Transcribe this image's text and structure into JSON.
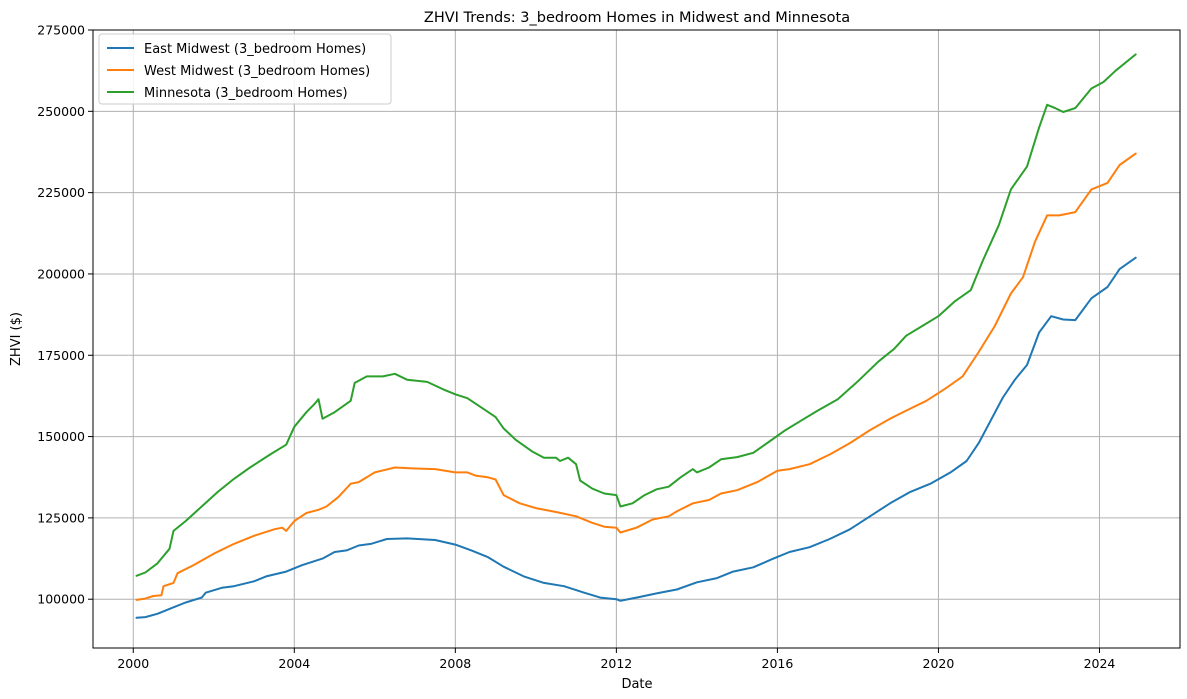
{
  "chart_data": {
    "type": "line",
    "title": "ZHVI Trends: 3_bedroom Homes in Midwest and Minnesota",
    "xlabel": "Date",
    "ylabel": "ZHVI ($)",
    "xlim": [
      1999.0,
      2026.0
    ],
    "ylim": [
      85000,
      275000
    ],
    "x_ticks": [
      2000,
      2004,
      2008,
      2012,
      2016,
      2020,
      2024
    ],
    "x_tick_labels": [
      "2000",
      "2004",
      "2008",
      "2012",
      "2016",
      "2020",
      "2024"
    ],
    "y_ticks": [
      100000,
      125000,
      150000,
      175000,
      200000,
      225000,
      250000,
      275000
    ],
    "y_tick_labels": [
      "100000",
      "125000",
      "150000",
      "175000",
      "200000",
      "225000",
      "250000",
      "275000"
    ],
    "grid": true,
    "legend_position": "top-left",
    "series": [
      {
        "name": "East Midwest (3_bedroom Homes)",
        "color": "#1f77b4",
        "points": [
          [
            2000.08,
            94300
          ],
          [
            2000.3,
            94500
          ],
          [
            2000.6,
            95500
          ],
          [
            2001.0,
            97500
          ],
          [
            2001.3,
            99000
          ],
          [
            2001.7,
            100500
          ],
          [
            2001.8,
            102000
          ],
          [
            2002.2,
            103500
          ],
          [
            2002.5,
            104000
          ],
          [
            2003.0,
            105500
          ],
          [
            2003.3,
            107000
          ],
          [
            2003.8,
            108500
          ],
          [
            2004.2,
            110500
          ],
          [
            2004.7,
            112500
          ],
          [
            2005.0,
            114500
          ],
          [
            2005.3,
            115000
          ],
          [
            2005.6,
            116500
          ],
          [
            2005.9,
            117000
          ],
          [
            2006.3,
            118500
          ],
          [
            2006.8,
            118700
          ],
          [
            2007.5,
            118200
          ],
          [
            2008.0,
            116800
          ],
          [
            2008.4,
            115000
          ],
          [
            2008.8,
            113000
          ],
          [
            2009.2,
            110000
          ],
          [
            2009.7,
            107000
          ],
          [
            2010.2,
            105000
          ],
          [
            2010.7,
            104000
          ],
          [
            2011.2,
            102000
          ],
          [
            2011.6,
            100500
          ],
          [
            2012.0,
            100000
          ],
          [
            2012.1,
            99500
          ],
          [
            2012.5,
            100500
          ],
          [
            2013.0,
            101800
          ],
          [
            2013.5,
            103000
          ],
          [
            2014.0,
            105200
          ],
          [
            2014.5,
            106500
          ],
          [
            2014.9,
            108500
          ],
          [
            2015.4,
            109800
          ],
          [
            2015.9,
            112500
          ],
          [
            2016.3,
            114500
          ],
          [
            2016.8,
            116000
          ],
          [
            2017.3,
            118500
          ],
          [
            2017.8,
            121500
          ],
          [
            2018.3,
            125500
          ],
          [
            2018.8,
            129500
          ],
          [
            2019.3,
            133000
          ],
          [
            2019.8,
            135500
          ],
          [
            2020.3,
            139000
          ],
          [
            2020.7,
            142500
          ],
          [
            2021.0,
            148000
          ],
          [
            2021.3,
            155000
          ],
          [
            2021.6,
            162000
          ],
          [
            2021.9,
            167500
          ],
          [
            2022.2,
            172000
          ],
          [
            2022.5,
            182000
          ],
          [
            2022.8,
            187000
          ],
          [
            2023.1,
            186000
          ],
          [
            2023.4,
            185800
          ],
          [
            2023.8,
            192500
          ],
          [
            2024.2,
            196000
          ],
          [
            2024.5,
            201500
          ],
          [
            2024.9,
            205000
          ]
        ]
      },
      {
        "name": "West Midwest (3_bedroom Homes)",
        "color": "#ff7f0e",
        "points": [
          [
            2000.08,
            99800
          ],
          [
            2000.3,
            100200
          ],
          [
            2000.5,
            101000
          ],
          [
            2000.7,
            101200
          ],
          [
            2000.75,
            104000
          ],
          [
            2001.0,
            105000
          ],
          [
            2001.1,
            108000
          ],
          [
            2001.5,
            110500
          ],
          [
            2002.0,
            114000
          ],
          [
            2002.5,
            117000
          ],
          [
            2003.0,
            119500
          ],
          [
            2003.5,
            121500
          ],
          [
            2003.7,
            122000
          ],
          [
            2003.8,
            121000
          ],
          [
            2004.0,
            124000
          ],
          [
            2004.3,
            126500
          ],
          [
            2004.6,
            127500
          ],
          [
            2004.8,
            128500
          ],
          [
            2005.1,
            131500
          ],
          [
            2005.4,
            135500
          ],
          [
            2005.6,
            136000
          ],
          [
            2006.0,
            139000
          ],
          [
            2006.5,
            140500
          ],
          [
            2007.0,
            140200
          ],
          [
            2007.5,
            140000
          ],
          [
            2008.0,
            139000
          ],
          [
            2008.3,
            139000
          ],
          [
            2008.5,
            138000
          ],
          [
            2008.8,
            137500
          ],
          [
            2009.0,
            136800
          ],
          [
            2009.2,
            132000
          ],
          [
            2009.6,
            129500
          ],
          [
            2010.0,
            128000
          ],
          [
            2010.5,
            126800
          ],
          [
            2011.0,
            125500
          ],
          [
            2011.4,
            123500
          ],
          [
            2011.7,
            122300
          ],
          [
            2012.0,
            122000
          ],
          [
            2012.1,
            120500
          ],
          [
            2012.5,
            122000
          ],
          [
            2012.9,
            124500
          ],
          [
            2013.3,
            125500
          ],
          [
            2013.5,
            127000
          ],
          [
            2013.9,
            129500
          ],
          [
            2014.3,
            130500
          ],
          [
            2014.6,
            132500
          ],
          [
            2015.0,
            133500
          ],
          [
            2015.5,
            136000
          ],
          [
            2016.0,
            139500
          ],
          [
            2016.3,
            140000
          ],
          [
            2016.8,
            141500
          ],
          [
            2017.3,
            144500
          ],
          [
            2017.8,
            148000
          ],
          [
            2018.3,
            152000
          ],
          [
            2018.8,
            155500
          ],
          [
            2019.2,
            158000
          ],
          [
            2019.7,
            161000
          ],
          [
            2020.2,
            165000
          ],
          [
            2020.6,
            168500
          ],
          [
            2021.0,
            176000
          ],
          [
            2021.4,
            184000
          ],
          [
            2021.8,
            194000
          ],
          [
            2022.1,
            199000
          ],
          [
            2022.4,
            210000
          ],
          [
            2022.7,
            218000
          ],
          [
            2023.0,
            218000
          ],
          [
            2023.4,
            219000
          ],
          [
            2023.8,
            226000
          ],
          [
            2024.2,
            228000
          ],
          [
            2024.5,
            233500
          ],
          [
            2024.9,
            237000
          ]
        ]
      },
      {
        "name": "Minnesota (3_bedroom Homes)",
        "color": "#2ca02c",
        "points": [
          [
            2000.08,
            107200
          ],
          [
            2000.3,
            108200
          ],
          [
            2000.6,
            111000
          ],
          [
            2000.9,
            115500
          ],
          [
            2001.0,
            121000
          ],
          [
            2001.3,
            124000
          ],
          [
            2001.7,
            128500
          ],
          [
            2002.1,
            133000
          ],
          [
            2002.5,
            137000
          ],
          [
            2002.9,
            140500
          ],
          [
            2003.4,
            144500
          ],
          [
            2003.8,
            147500
          ],
          [
            2004.0,
            153000
          ],
          [
            2004.3,
            157500
          ],
          [
            2004.5,
            160000
          ],
          [
            2004.6,
            161500
          ],
          [
            2004.7,
            155500
          ],
          [
            2005.0,
            157500
          ],
          [
            2005.4,
            161000
          ],
          [
            2005.5,
            166500
          ],
          [
            2005.8,
            168500
          ],
          [
            2006.2,
            168500
          ],
          [
            2006.5,
            169300
          ],
          [
            2006.8,
            167500
          ],
          [
            2007.3,
            166800
          ],
          [
            2007.7,
            164500
          ],
          [
            2008.0,
            163000
          ],
          [
            2008.3,
            161800
          ],
          [
            2008.7,
            158500
          ],
          [
            2009.0,
            156000
          ],
          [
            2009.2,
            152500
          ],
          [
            2009.5,
            149000
          ],
          [
            2009.9,
            145500
          ],
          [
            2010.2,
            143500
          ],
          [
            2010.5,
            143500
          ],
          [
            2010.6,
            142500
          ],
          [
            2010.8,
            143500
          ],
          [
            2011.0,
            141500
          ],
          [
            2011.1,
            136500
          ],
          [
            2011.4,
            134000
          ],
          [
            2011.7,
            132500
          ],
          [
            2012.0,
            132000
          ],
          [
            2012.1,
            128500
          ],
          [
            2012.4,
            129500
          ],
          [
            2012.7,
            132000
          ],
          [
            2013.0,
            133800
          ],
          [
            2013.3,
            134600
          ],
          [
            2013.6,
            137500
          ],
          [
            2013.9,
            140000
          ],
          [
            2014.0,
            139000
          ],
          [
            2014.3,
            140500
          ],
          [
            2014.6,
            143000
          ],
          [
            2015.0,
            143700
          ],
          [
            2015.4,
            145000
          ],
          [
            2015.8,
            148500
          ],
          [
            2016.2,
            152000
          ],
          [
            2016.6,
            155000
          ],
          [
            2017.0,
            158000
          ],
          [
            2017.5,
            161500
          ],
          [
            2018.0,
            167000
          ],
          [
            2018.5,
            173000
          ],
          [
            2018.9,
            177000
          ],
          [
            2019.2,
            181000
          ],
          [
            2019.6,
            184000
          ],
          [
            2020.0,
            187000
          ],
          [
            2020.4,
            191500
          ],
          [
            2020.8,
            195000
          ],
          [
            2021.1,
            204000
          ],
          [
            2021.5,
            215000
          ],
          [
            2021.8,
            226000
          ],
          [
            2022.2,
            233000
          ],
          [
            2022.5,
            245000
          ],
          [
            2022.7,
            252000
          ],
          [
            2022.9,
            251000
          ],
          [
            2023.1,
            249800
          ],
          [
            2023.4,
            251000
          ],
          [
            2023.8,
            257000
          ],
          [
            2024.1,
            259000
          ],
          [
            2024.4,
            262500
          ],
          [
            2024.9,
            267500
          ]
        ]
      }
    ]
  }
}
